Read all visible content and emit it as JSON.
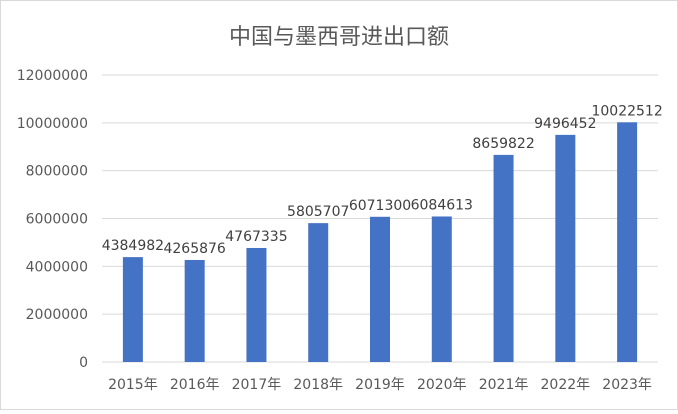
{
  "chart_data": {
    "type": "bar",
    "title": "中国与墨西哥进出口额",
    "categories": [
      "2015年",
      "2016年",
      "2017年",
      "2018年",
      "2019年",
      "2020年",
      "2021年",
      "2022年",
      "2023年"
    ],
    "values": [
      4384982,
      4265876,
      4767335,
      5805707,
      6071300,
      6084613,
      8659822,
      9496452,
      10022512
    ],
    "data_labels": [
      "4384982",
      "4265876",
      "4767335",
      "5805707",
      "6071300",
      "6084613",
      "8659822",
      "9496452",
      "10022512"
    ],
    "yticks": [
      "0",
      "2000000",
      "4000000",
      "6000000",
      "8000000",
      "10000000",
      "12000000"
    ],
    "ylim": [
      0,
      12000000
    ],
    "xlabel": "",
    "ylabel": "",
    "grid": true,
    "legend": "none",
    "bar_color": "#4472c4",
    "grid_color": "#d9d9d9"
  }
}
